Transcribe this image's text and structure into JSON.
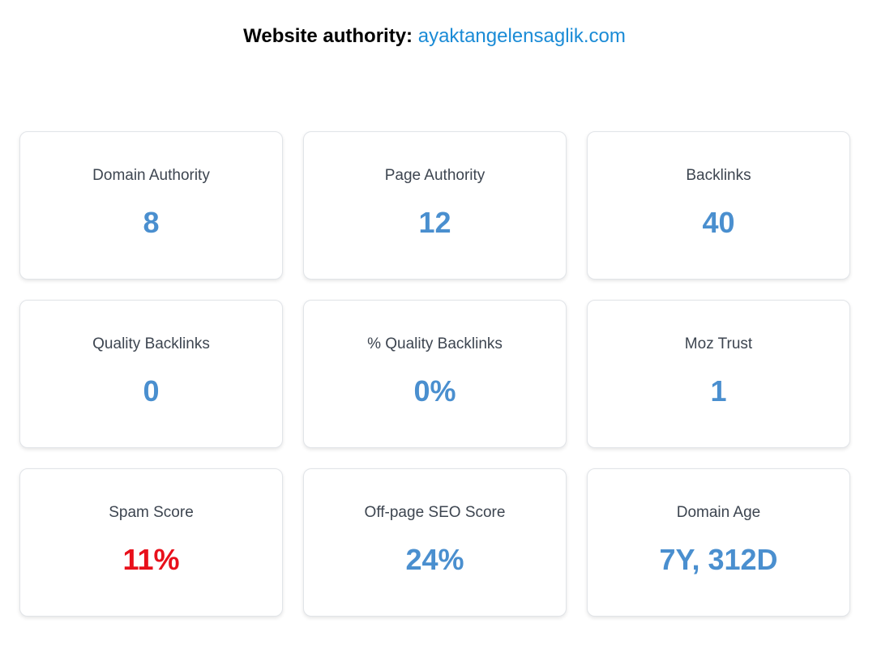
{
  "header": {
    "label": "Website authority:",
    "domain": "ayaktangelensaglik.com"
  },
  "metrics": [
    {
      "label": "Domain Authority",
      "value": "8"
    },
    {
      "label": "Page Authority",
      "value": "12"
    },
    {
      "label": "Backlinks",
      "value": "40"
    },
    {
      "label": "Quality Backlinks",
      "value": "0"
    },
    {
      "label": "% Quality Backlinks",
      "value": "0%"
    },
    {
      "label": "Moz Trust",
      "value": "1"
    },
    {
      "label": "Spam Score",
      "value": "11%"
    },
    {
      "label": "Off-page SEO Score",
      "value": "24%"
    },
    {
      "label": "Domain Age",
      "value": "7Y, 312D"
    }
  ],
  "colors": {
    "value_default": "#4a8fcf",
    "value_danger": "#e8101b",
    "link": "#1a8bd6"
  }
}
